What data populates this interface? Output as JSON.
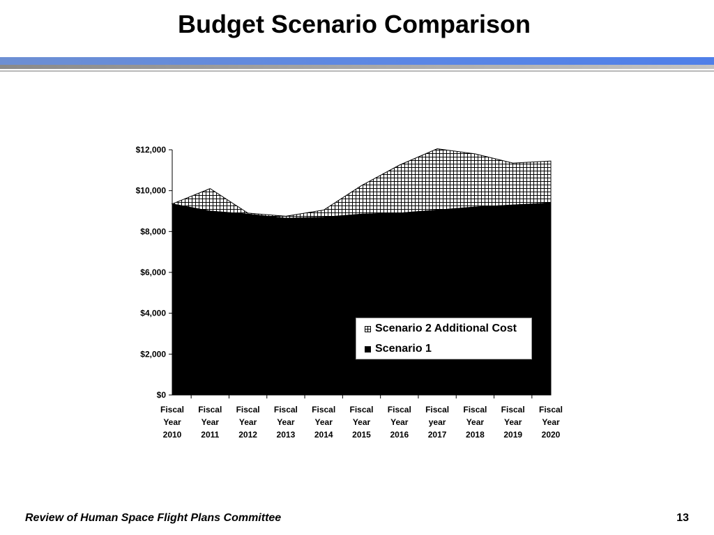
{
  "slide": {
    "title": "Budget Scenario Comparison",
    "footer_text": "Review of Human Space Flight Plans Committee",
    "page_number": "13"
  },
  "colors": {
    "accent_bar": "#5a86e6",
    "scenario1": "#000000",
    "scenario2_fill": "#ffffff"
  },
  "chart_data": {
    "type": "area",
    "stacked": true,
    "title": "",
    "xlabel": "",
    "ylabel": "",
    "categories": [
      "Fiscal Year 2010",
      "Fiscal Year 2011",
      "Fiscal Year 2012",
      "Fiscal Year 2013",
      "Fiscal Year 2014",
      "Fiscal Year 2015",
      "Fiscal Year 2016",
      "Fiscal year 2017",
      "Fiscal Year 2018",
      "Fiscal Year 2019",
      "Fiscal Year 2020"
    ],
    "ylim": [
      0,
      12000
    ],
    "yticks": [
      "$0",
      "$2,000",
      "$4,000",
      "$6,000",
      "$8,000",
      "$10,000",
      "$12,000"
    ],
    "series": [
      {
        "name": "Scenario 1",
        "pattern": "solid",
        "values": [
          9350,
          9000,
          8850,
          8650,
          8700,
          8850,
          8900,
          9050,
          9200,
          9300,
          9400
        ]
      },
      {
        "name": "Scenario 2 Additional Cost",
        "pattern": "grid",
        "values": [
          0,
          1100,
          50,
          100,
          350,
          1400,
          2350,
          3000,
          2600,
          2050,
          2050
        ]
      }
    ],
    "legend_position": "lower-right",
    "grid": false
  }
}
